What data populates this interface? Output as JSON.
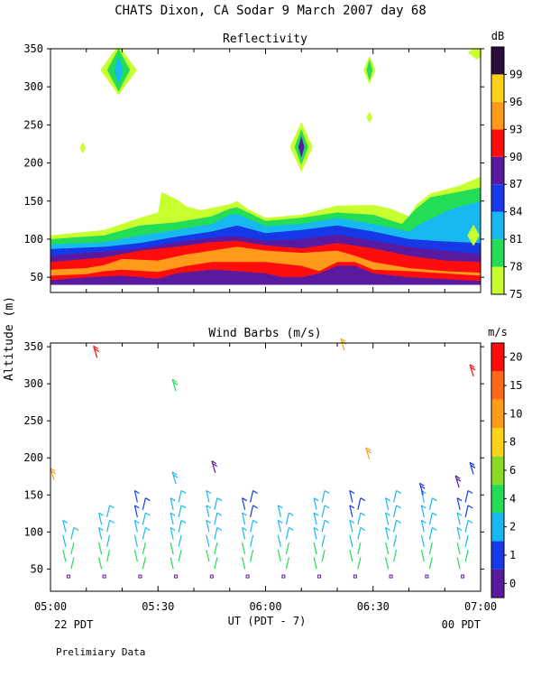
{
  "title": "CHATS Dixon, CA   Sodar   9 March 2007   day  68",
  "ylabel": "Altitude (m)",
  "xlabel": "UT  (PDT - 7)",
  "footer": {
    "left_date": "22 PDT",
    "right_date": "00 PDT",
    "note": "Prelimiary Data"
  },
  "chart_data": [
    {
      "type": "heatmap",
      "title": "Reflectivity",
      "xlabel": "UT  (PDT - 7)",
      "ylabel": "Altitude (m)",
      "x_ticks": [
        "05:00",
        "05:30",
        "06:00",
        "06:30",
        "07:00"
      ],
      "x_range_minutes": [
        0,
        120
      ],
      "y_ticks": [
        50,
        100,
        150,
        200,
        250,
        300,
        350
      ],
      "ylim": [
        30,
        350
      ],
      "colorbar": {
        "unit": "dB",
        "levels": [
          75,
          78,
          81,
          84,
          87,
          90,
          93,
          96,
          99
        ],
        "colors": [
          "#c8ff2e",
          "#22dd55",
          "#18b8f0",
          "#1638e6",
          "#5a1aa0",
          "#ff0d0d",
          "#ff9a1a",
          "#ffd21a",
          "#2a0d3a"
        ]
      },
      "layers": [
        {
          "threshold": 75,
          "color": "#c8ff2e",
          "top": [
            [
              0,
              105
            ],
            [
              15,
              112
            ],
            [
              25,
              128
            ],
            [
              30,
              135
            ],
            [
              31,
              162
            ],
            [
              36,
              150
            ],
            [
              38,
              143
            ],
            [
              42,
              138
            ],
            [
              50,
              146
            ],
            [
              52,
              150
            ],
            [
              55,
              140
            ],
            [
              60,
              128
            ],
            [
              70,
              132
            ],
            [
              80,
              144
            ],
            [
              90,
              145
            ],
            [
              95,
              140
            ],
            [
              100,
              130
            ],
            [
              102,
              145
            ],
            [
              106,
              160
            ],
            [
              114,
              170
            ],
            [
              120,
              182
            ]
          ]
        },
        {
          "threshold": 78,
          "color": "#22dd55",
          "top": [
            [
              0,
              100
            ],
            [
              15,
              105
            ],
            [
              25,
              118
            ],
            [
              35,
              122
            ],
            [
              45,
              130
            ],
            [
              50,
              140
            ],
            [
              52,
              142
            ],
            [
              60,
              124
            ],
            [
              70,
              128
            ],
            [
              80,
              135
            ],
            [
              90,
              132
            ],
            [
              98,
              120
            ],
            [
              102,
              140
            ],
            [
              106,
              155
            ],
            [
              114,
              162
            ],
            [
              120,
              168
            ]
          ]
        },
        {
          "threshold": 81,
          "color": "#18b8f0",
          "top": [
            [
              0,
              93
            ],
            [
              15,
              96
            ],
            [
              25,
              105
            ],
            [
              35,
              112
            ],
            [
              45,
              120
            ],
            [
              50,
              132
            ],
            [
              52,
              133
            ],
            [
              60,
              117
            ],
            [
              70,
              120
            ],
            [
              80,
              128
            ],
            [
              90,
              120
            ],
            [
              100,
              110
            ],
            [
              104,
              122
            ],
            [
              112,
              140
            ],
            [
              120,
              150
            ]
          ]
        },
        {
          "threshold": 84,
          "color": "#1638e6",
          "top": [
            [
              0,
              87
            ],
            [
              15,
              90
            ],
            [
              25,
              95
            ],
            [
              35,
              103
            ],
            [
              45,
              110
            ],
            [
              52,
              118
            ],
            [
              60,
              108
            ],
            [
              70,
              112
            ],
            [
              80,
              118
            ],
            [
              90,
              110
            ],
            [
              100,
              100
            ],
            [
              110,
              97
            ],
            [
              120,
              95
            ]
          ]
        },
        {
          "threshold": 87,
          "color": "#5a1aa0",
          "top": [
            [
              0,
              78
            ],
            [
              15,
              84
            ],
            [
              25,
              88
            ],
            [
              35,
              96
            ],
            [
              45,
              102
            ],
            [
              52,
              104
            ],
            [
              60,
              98
            ],
            [
              70,
              100
            ],
            [
              80,
              106
            ],
            [
              90,
              98
            ],
            [
              100,
              90
            ],
            [
              110,
              85
            ],
            [
              120,
              80
            ]
          ]
        },
        {
          "threshold": 90,
          "color": "#ff0d0d",
          "top": [
            [
              0,
              70
            ],
            [
              15,
              76
            ],
            [
              25,
              85
            ],
            [
              35,
              90
            ],
            [
              45,
              96
            ],
            [
              52,
              98
            ],
            [
              60,
              92
            ],
            [
              70,
              88
            ],
            [
              80,
              95
            ],
            [
              90,
              88
            ],
            [
              100,
              78
            ],
            [
              110,
              72
            ],
            [
              120,
              70
            ]
          ]
        },
        {
          "threshold": 93,
          "color": "#ff9a1a",
          "top": [
            [
              0,
              60
            ],
            [
              10,
              62
            ],
            [
              15,
              66
            ],
            [
              20,
              74
            ],
            [
              30,
              72
            ],
            [
              38,
              80
            ],
            [
              45,
              85
            ],
            [
              52,
              90
            ],
            [
              60,
              85
            ],
            [
              70,
              82
            ],
            [
              80,
              85
            ],
            [
              85,
              78
            ],
            [
              90,
              70
            ],
            [
              100,
              62
            ],
            [
              110,
              58
            ],
            [
              120,
              56
            ]
          ]
        },
        {
          "threshold": 90,
          "color": "#ff0d0d",
          "top": [
            [
              0,
              52
            ],
            [
              10,
              54
            ],
            [
              15,
              58
            ],
            [
              20,
              60
            ],
            [
              30,
              57
            ],
            [
              38,
              65
            ],
            [
              45,
              70
            ],
            [
              52,
              70
            ],
            [
              60,
              70
            ],
            [
              70,
              65
            ],
            [
              75,
              58
            ],
            [
              80,
              70
            ],
            [
              85,
              70
            ],
            [
              90,
              60
            ],
            [
              100,
              58
            ],
            [
              120,
              52
            ]
          ]
        },
        {
          "threshold": 87,
          "color": "#5a1aa0",
          "top": [
            [
              0,
              46
            ],
            [
              10,
              50
            ],
            [
              20,
              52
            ],
            [
              30,
              48
            ],
            [
              35,
              55
            ],
            [
              45,
              60
            ],
            [
              52,
              58
            ],
            [
              60,
              55
            ],
            [
              65,
              50
            ],
            [
              70,
              50
            ],
            [
              75,
              55
            ],
            [
              80,
              65
            ],
            [
              85,
              65
            ],
            [
              90,
              55
            ],
            [
              100,
              50
            ],
            [
              120,
              45
            ]
          ]
        }
      ],
      "islands": [
        {
          "center": [
            19,
            322
          ],
          "half_width": [
            7,
            6,
            4
          ],
          "half_height": [
            24,
            15,
            6
          ],
          "colors": [
            "#c8ff2e",
            "#22dd55",
            "#18b8f0"
          ]
        },
        {
          "center": [
            70,
            221
          ],
          "half_width": [
            7,
            5,
            3
          ],
          "half_height": [
            15,
            9,
            4
          ],
          "colors": [
            "#c8ff2e",
            "#22dd55",
            "#5a1aa0"
          ]
        },
        {
          "center": [
            89,
            322
          ],
          "half_width": [
            4,
            3
          ],
          "half_height": [
            8,
            4
          ],
          "colors": [
            "#c8ff2e",
            "#22dd55"
          ]
        },
        {
          "center": [
            9,
            220
          ],
          "half_width": [
            1.6
          ],
          "half_height": [
            4
          ],
          "colors": [
            "#c8ff2e"
          ]
        },
        {
          "center": [
            89,
            260
          ],
          "half_width": [
            1.6
          ],
          "half_height": [
            4
          ],
          "colors": [
            "#c8ff2e"
          ]
        },
        {
          "center": [
            119,
            345
          ],
          "half_width": [
            2
          ],
          "half_height": [
            12
          ],
          "colors": [
            "#c8ff2e"
          ]
        },
        {
          "center": [
            118,
            105
          ],
          "half_width": [
            3
          ],
          "half_height": [
            8
          ],
          "colors": [
            "#c8ff2e"
          ]
        }
      ]
    },
    {
      "type": "scatter",
      "title": "Wind Barbs (m/s)",
      "xlabel": "UT  (PDT - 7)",
      "ylabel": "Altitude (m)",
      "x_ticks": [
        "05:00",
        "05:30",
        "06:00",
        "06:30",
        "07:00"
      ],
      "x_range_minutes": [
        0,
        120
      ],
      "y_ticks": [
        50,
        100,
        150,
        200,
        250,
        300,
        350
      ],
      "ylim": [
        20,
        355
      ],
      "colorbar": {
        "unit": "m/s",
        "tick_labels": [
          "0",
          "1",
          "2",
          "4",
          "6",
          "8",
          "10",
          "15",
          "20"
        ],
        "colors": [
          "#5a1aa0",
          "#1638e6",
          "#18b8f0",
          "#22dd55",
          "#88dd22",
          "#ffd21a",
          "#ff9a1a",
          "#ff6a1a",
          "#ff0d0d"
        ]
      },
      "time_columns_minutes": [
        5,
        15,
        25,
        35,
        45,
        55,
        65,
        75,
        85,
        95,
        105,
        115
      ],
      "low_levels_m": [
        40,
        50,
        60,
        70,
        80,
        90,
        100,
        110,
        120,
        130,
        140
      ],
      "column_tops_m": [
        100,
        120,
        140,
        140,
        140,
        140,
        120,
        140,
        140,
        140,
        140,
        140
      ],
      "calm_marker_level_m": 40,
      "upper_barbs": [
        {
          "t": 1,
          "z": 170,
          "color": "#ff9a1a"
        },
        {
          "t": 13,
          "z": 335,
          "color": "#ff0d0d"
        },
        {
          "t": 35,
          "z": 290,
          "color": "#22dd55"
        },
        {
          "t": 35,
          "z": 165,
          "color": "#18b8f0"
        },
        {
          "t": 46,
          "z": 180,
          "color": "#5a1aa0"
        },
        {
          "t": 82,
          "z": 345,
          "color": "#ff9a1a"
        },
        {
          "t": 89,
          "z": 198,
          "color": "#ff9a1a"
        },
        {
          "t": 118,
          "z": 310,
          "color": "#ff0d0d"
        },
        {
          "t": 114,
          "z": 160,
          "color": "#5a1aa0"
        },
        {
          "t": 104,
          "z": 150,
          "color": "#1638e6"
        },
        {
          "t": 118,
          "z": 178,
          "color": "#1638e6"
        }
      ]
    }
  ]
}
